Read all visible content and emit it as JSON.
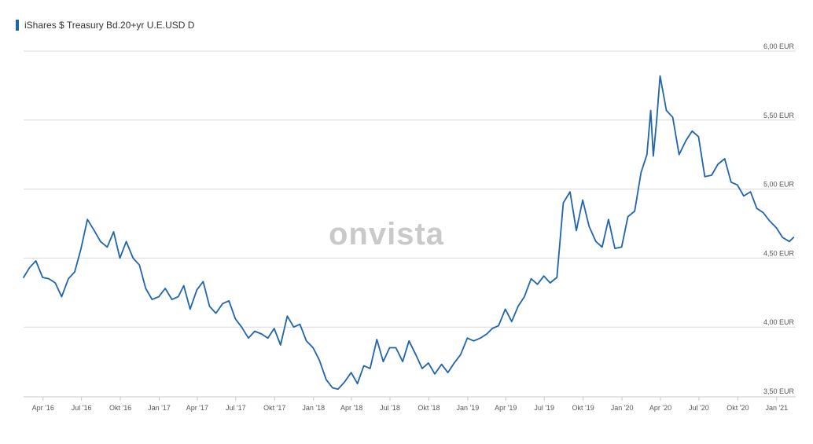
{
  "chart_data": {
    "type": "line",
    "title": "",
    "legend": {
      "label": "iShares $ Treasury Bd.20+yr U.E.USD D",
      "color": "#1f64ad",
      "placement": "top-left"
    },
    "watermark": "onvista",
    "line_color": "#1f64ad",
    "grid": true,
    "xlim": [
      "2016-02-15",
      "2021-02-15"
    ],
    "ylim": [
      3.5,
      6.0
    ],
    "y_ticks": [
      {
        "value": 3.5,
        "label": "3,50 EUR"
      },
      {
        "value": 4.0,
        "label": "4,00 EUR"
      },
      {
        "value": 4.5,
        "label": "4,50 EUR"
      },
      {
        "value": 5.0,
        "label": "5,00 EUR"
      },
      {
        "value": 5.5,
        "label": "5,50 EUR"
      },
      {
        "value": 6.0,
        "label": "6,00 EUR"
      }
    ],
    "x_ticks": [
      {
        "date": "2016-04-01",
        "label": "Apr '16"
      },
      {
        "date": "2016-07-01",
        "label": "Jul '16"
      },
      {
        "date": "2016-10-01",
        "label": "Okt '16"
      },
      {
        "date": "2017-01-01",
        "label": "Jan '17"
      },
      {
        "date": "2017-04-01",
        "label": "Apr '17"
      },
      {
        "date": "2017-07-01",
        "label": "Jul '17"
      },
      {
        "date": "2017-10-01",
        "label": "Okt '17"
      },
      {
        "date": "2018-01-01",
        "label": "Jan '18"
      },
      {
        "date": "2018-04-01",
        "label": "Apr '18"
      },
      {
        "date": "2018-07-01",
        "label": "Jul '18"
      },
      {
        "date": "2018-10-01",
        "label": "Okt '18"
      },
      {
        "date": "2019-01-01",
        "label": "Jan '19"
      },
      {
        "date": "2019-04-01",
        "label": "Apr '19"
      },
      {
        "date": "2019-07-01",
        "label": "Jul '19"
      },
      {
        "date": "2019-10-01",
        "label": "Okt '19"
      },
      {
        "date": "2020-01-01",
        "label": "Jan '20"
      },
      {
        "date": "2020-04-01",
        "label": "Apr '20"
      },
      {
        "date": "2020-07-01",
        "label": "Jul '20"
      },
      {
        "date": "2020-10-01",
        "label": "Okt '20"
      },
      {
        "date": "2021-01-01",
        "label": "Jan '21"
      }
    ],
    "series": [
      {
        "x": [
          "2016-02-15",
          "2016-02-29",
          "2016-03-15",
          "2016-03-31",
          "2016-04-15",
          "2016-04-30",
          "2016-05-15",
          "2016-05-31",
          "2016-06-15",
          "2016-06-30",
          "2016-07-15",
          "2016-07-31",
          "2016-08-15",
          "2016-08-31",
          "2016-09-15",
          "2016-09-30",
          "2016-10-15",
          "2016-10-31",
          "2016-11-15",
          "2016-11-30",
          "2016-12-15",
          "2016-12-31",
          "2017-01-15",
          "2017-01-31",
          "2017-02-15",
          "2017-02-28",
          "2017-03-15",
          "2017-03-31",
          "2017-04-15",
          "2017-04-30",
          "2017-05-15",
          "2017-05-31",
          "2017-06-15",
          "2017-06-30",
          "2017-07-15",
          "2017-07-31",
          "2017-08-15",
          "2017-08-31",
          "2017-09-15",
          "2017-09-30",
          "2017-10-15",
          "2017-10-31",
          "2017-11-15",
          "2017-11-30",
          "2017-12-15",
          "2017-12-31",
          "2018-01-15",
          "2018-01-31",
          "2018-02-15",
          "2018-02-28",
          "2018-03-15",
          "2018-03-31",
          "2018-04-15",
          "2018-04-30",
          "2018-05-15",
          "2018-05-31",
          "2018-06-15",
          "2018-06-30",
          "2018-07-15",
          "2018-07-31",
          "2018-08-15",
          "2018-08-31",
          "2018-09-15",
          "2018-09-30",
          "2018-10-15",
          "2018-10-31",
          "2018-11-15",
          "2018-11-30",
          "2018-12-15",
          "2018-12-31",
          "2019-01-15",
          "2019-01-31",
          "2019-02-15",
          "2019-02-28",
          "2019-03-15",
          "2019-03-31",
          "2019-04-15",
          "2019-04-30",
          "2019-05-15",
          "2019-05-31",
          "2019-06-15",
          "2019-06-30",
          "2019-07-15",
          "2019-07-31",
          "2019-08-15",
          "2019-08-31",
          "2019-09-15",
          "2019-09-30",
          "2019-10-15",
          "2019-10-31",
          "2019-11-15",
          "2019-11-30",
          "2019-12-15",
          "2019-12-31",
          "2020-01-15",
          "2020-01-31",
          "2020-02-15",
          "2020-02-29",
          "2020-03-09",
          "2020-03-15",
          "2020-03-23",
          "2020-03-31",
          "2020-04-15",
          "2020-04-30",
          "2020-05-15",
          "2020-05-31",
          "2020-06-15",
          "2020-06-30",
          "2020-07-15",
          "2020-07-31",
          "2020-08-15",
          "2020-08-31",
          "2020-09-15",
          "2020-09-30",
          "2020-10-15",
          "2020-10-31",
          "2020-11-15",
          "2020-11-30",
          "2020-12-15",
          "2020-12-31",
          "2021-01-15",
          "2021-01-31",
          "2021-02-10"
        ],
        "y": [
          4.36,
          4.43,
          4.48,
          4.36,
          4.35,
          4.32,
          4.22,
          4.35,
          4.4,
          4.57,
          4.78,
          4.7,
          4.62,
          4.58,
          4.69,
          4.5,
          4.62,
          4.5,
          4.45,
          4.28,
          4.2,
          4.22,
          4.28,
          4.2,
          4.22,
          4.3,
          4.13,
          4.27,
          4.33,
          4.15,
          4.1,
          4.17,
          4.19,
          4.06,
          4.0,
          3.92,
          3.97,
          3.95,
          3.92,
          3.99,
          3.87,
          4.08,
          4.0,
          4.02,
          3.9,
          3.85,
          3.76,
          3.62,
          3.56,
          3.55,
          3.6,
          3.67,
          3.59,
          3.72,
          3.7,
          3.91,
          3.75,
          3.85,
          3.85,
          3.75,
          3.9,
          3.8,
          3.7,
          3.74,
          3.66,
          3.73,
          3.67,
          3.74,
          3.8,
          3.92,
          3.9,
          3.92,
          3.95,
          3.99,
          4.01,
          4.13,
          4.04,
          4.15,
          4.22,
          4.35,
          4.31,
          4.37,
          4.32,
          4.36,
          4.9,
          4.98,
          4.7,
          4.92,
          4.73,
          4.62,
          4.58,
          4.78,
          4.57,
          4.58,
          4.8,
          4.84,
          5.12,
          5.25,
          5.57,
          5.24,
          5.5,
          5.82,
          5.57,
          5.52,
          5.25,
          5.35,
          5.42,
          5.38,
          5.09,
          5.1,
          5.18,
          5.22,
          5.05,
          5.03,
          4.95,
          4.98,
          4.86,
          4.83,
          4.77,
          4.72,
          4.65,
          4.62,
          4.65
        ]
      }
    ]
  }
}
